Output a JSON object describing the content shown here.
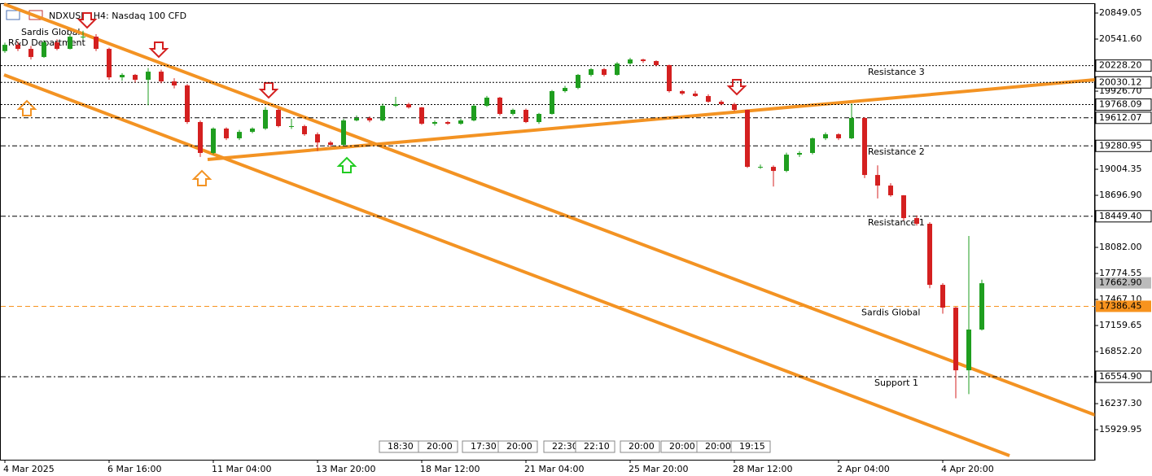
{
  "chart_data": {
    "type": "candlestick",
    "title": "NDXUSD, H4:  Nasdaq 100 CFD",
    "indicator_labels": [
      "Sardis Global",
      "R&D Department"
    ],
    "bull_color": "#1f9e1f",
    "bear_color": "#d42020",
    "candles": [
      [
        20400,
        20500,
        20380,
        20474
      ],
      [
        20474,
        20510,
        20400,
        20426
      ],
      [
        20426,
        20460,
        20300,
        20330
      ],
      [
        20330,
        20530,
        20320,
        20503
      ],
      [
        20503,
        20540,
        20410,
        20426
      ],
      [
        20426,
        20600,
        20420,
        20570
      ],
      [
        20570,
        20640,
        20540,
        20570
      ],
      [
        20570,
        20600,
        20400,
        20426
      ],
      [
        20426,
        20440,
        20060,
        20090
      ],
      [
        20090,
        20140,
        20050,
        20119
      ],
      [
        20119,
        20130,
        20030,
        20061
      ],
      [
        20061,
        20200,
        19760,
        20157
      ],
      [
        20157,
        20180,
        20020,
        20042
      ],
      [
        20042,
        20080,
        19960,
        19994
      ],
      [
        19994,
        20010,
        19540,
        19562
      ],
      [
        19562,
        19580,
        19150,
        19197
      ],
      [
        19197,
        19500,
        19180,
        19485
      ],
      [
        19485,
        19500,
        19350,
        19370
      ],
      [
        19370,
        19470,
        19350,
        19446
      ],
      [
        19446,
        19500,
        19430,
        19485
      ],
      [
        19485,
        19740,
        19470,
        19706
      ],
      [
        19706,
        19720,
        19500,
        19514
      ],
      [
        19514,
        19600,
        19480,
        19514
      ],
      [
        19514,
        19530,
        19400,
        19418
      ],
      [
        19418,
        19440,
        19220,
        19321
      ],
      [
        19321,
        19340,
        19270,
        19293
      ],
      [
        19293,
        19600,
        19280,
        19581
      ],
      [
        19581,
        19640,
        19570,
        19610
      ],
      [
        19610,
        19630,
        19560,
        19581
      ],
      [
        19581,
        19780,
        19570,
        19754
      ],
      [
        19754,
        19860,
        19740,
        19773
      ],
      [
        19773,
        19790,
        19720,
        19735
      ],
      [
        19735,
        19740,
        19530,
        19542
      ],
      [
        19542,
        19580,
        19520,
        19562
      ],
      [
        19562,
        19575,
        19530,
        19542
      ],
      [
        19542,
        19600,
        19530,
        19581
      ],
      [
        19581,
        19770,
        19570,
        19754
      ],
      [
        19754,
        19870,
        19740,
        19850
      ],
      [
        19850,
        19860,
        19640,
        19658
      ],
      [
        19658,
        19720,
        19640,
        19706
      ],
      [
        19706,
        19720,
        19550,
        19562
      ],
      [
        19562,
        19670,
        19540,
        19658
      ],
      [
        19658,
        19940,
        19650,
        19927
      ],
      [
        19927,
        19990,
        19910,
        19965
      ],
      [
        19965,
        20130,
        19950,
        20119
      ],
      [
        20119,
        20200,
        20100,
        20186
      ],
      [
        20186,
        20200,
        20100,
        20119
      ],
      [
        20119,
        20270,
        20110,
        20253
      ],
      [
        20253,
        20320,
        20240,
        20301
      ],
      [
        20301,
        20310,
        20260,
        20282
      ],
      [
        20282,
        20290,
        20220,
        20234
      ],
      [
        20234,
        20240,
        19910,
        19927
      ],
      [
        19927,
        19940,
        19880,
        19898
      ],
      [
        19898,
        19930,
        19860,
        19869
      ],
      [
        19869,
        19890,
        19790,
        19802
      ],
      [
        19802,
        19820,
        19760,
        19773
      ],
      [
        19773,
        19790,
        19690,
        19706
      ],
      [
        19706,
        19710,
        19020,
        19033
      ],
      [
        19033,
        19060,
        19010,
        19033
      ],
      [
        19033,
        19050,
        18800,
        18985
      ],
      [
        18985,
        19200,
        18970,
        19177
      ],
      [
        19177,
        19220,
        19150,
        19197
      ],
      [
        19197,
        19380,
        19180,
        19370
      ],
      [
        19370,
        19440,
        19350,
        19418
      ],
      [
        19418,
        19430,
        19350,
        19370
      ],
      [
        19370,
        19780,
        19360,
        19610
      ],
      [
        19610,
        19620,
        18900,
        18937
      ],
      [
        18937,
        19050,
        18660,
        18812
      ],
      [
        18812,
        18840,
        18680,
        18697
      ],
      [
        18697,
        18700,
        18400,
        18428
      ],
      [
        18428,
        18460,
        18340,
        18361
      ],
      [
        18361,
        18380,
        17600,
        17640
      ],
      [
        17640,
        17660,
        17300,
        17371
      ],
      [
        17371,
        17380,
        16300,
        16631
      ],
      [
        16631,
        18217,
        16350,
        17112
      ],
      [
        17112,
        17700,
        17100,
        17659
      ]
    ],
    "xticks": [
      {
        "value": 0,
        "label": "4 Mar 2025"
      },
      {
        "value": 8,
        "label": "6 Mar 16:00"
      },
      {
        "value": 16,
        "label": "11 Mar 04:00"
      },
      {
        "value": 24,
        "label": "13 Mar 20:00"
      },
      {
        "value": 32,
        "label": "18 Mar 12:00"
      },
      {
        "value": 40,
        "label": "21 Mar 04:00"
      },
      {
        "value": 48,
        "label": "25 Mar 20:00"
      },
      {
        "value": 56,
        "label": "28 Mar 12:00"
      },
      {
        "value": 64,
        "label": "2 Apr 04:00"
      },
      {
        "value": 72,
        "label": "4 Apr 20:00"
      }
    ],
    "ylim": [
      15575,
      20955
    ],
    "yticks": [
      20849.05,
      {
        "value": 20541.6,
        "label": "20541.60"
      },
      {
        "value": 19926.7,
        "label": "19926.70"
      },
      19004.35,
      {
        "value": 18696.9,
        "label": "18696.90"
      },
      {
        "value": 18082,
        "label": "18082.00"
      },
      17774.55,
      {
        "value": 17467.1,
        "label": "17467.10"
      },
      17159.65,
      {
        "value": 16852.2,
        "label": "16852.20"
      },
      {
        "value": 16237.3,
        "label": "16237.30"
      },
      15929.95
    ],
    "price_lines": [
      {
        "value": 20228.2,
        "label": "20228.20",
        "style": "dotted"
      },
      {
        "value": 20030.12,
        "label": "20030.12",
        "style": "dotted"
      },
      {
        "value": 19768.09,
        "label": "19768.09",
        "style": "dotted"
      },
      {
        "value": 19612.07,
        "label": "19612.07",
        "style": "dashdot"
      },
      {
        "value": 19280.95,
        "label": "19280.95",
        "style": "dashdot"
      },
      {
        "value": 18449.4,
        "label": "18449.40",
        "style": "dashdot"
      },
      {
        "value": 16554.9,
        "label": "16554.90",
        "style": "dashdot"
      }
    ],
    "indicator_line": {
      "name": "Sardis Global",
      "value": 17386.45,
      "label": "17386.45",
      "color": "#f7931e"
    },
    "current_price": {
      "value": 17662.9,
      "label": "17662.90"
    },
    "annotations": [
      "Resistance 3",
      "Resistance 2",
      "Resistance 1",
      "Support 1"
    ],
    "time_markers": [
      "18:30",
      "20:00",
      "17:30",
      "20:00",
      "22:30",
      "22:10",
      "20:00",
      "20:00",
      "20:00",
      "19:15"
    ]
  }
}
